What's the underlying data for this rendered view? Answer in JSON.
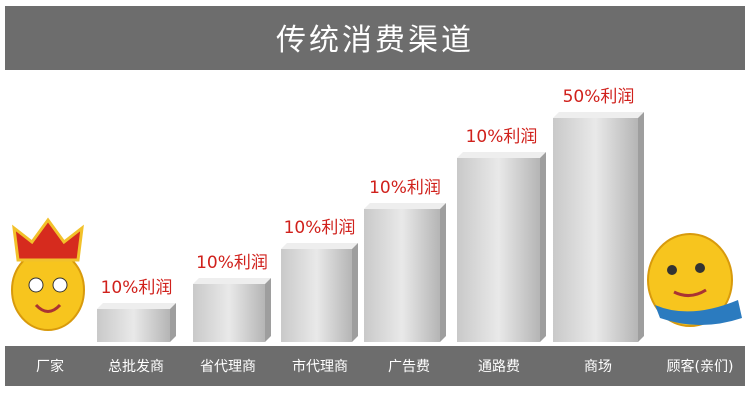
{
  "title": "传统消费渠道",
  "stages": [
    {
      "name": "厂家"
    },
    {
      "name": "总批发商",
      "profit": "10%利润"
    },
    {
      "name": "省代理商",
      "profit": "10%利润"
    },
    {
      "name": "市代理商",
      "profit": "10%利润"
    },
    {
      "name": "广告费",
      "profit": "10%利润"
    },
    {
      "name": "通路费",
      "profit": "10%利润"
    },
    {
      "name": "商场",
      "profit": "50%利润"
    },
    {
      "name": "顾客(亲们)"
    }
  ]
}
